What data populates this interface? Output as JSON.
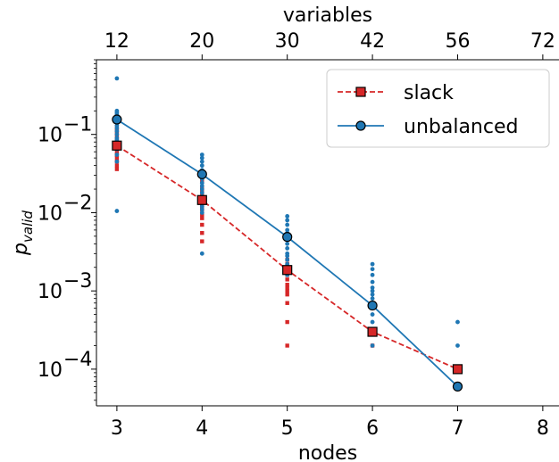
{
  "chart_data": {
    "type": "scatter",
    "xlabel": "nodes",
    "ylabel_base": "p",
    "ylabel_sub": "valid",
    "top_xlabel": "variables",
    "x_ticks": [
      3,
      4,
      5,
      6,
      7,
      8
    ],
    "x_tick_labels": [
      "3",
      "4",
      "5",
      "6",
      "7",
      "8"
    ],
    "top_ticks": [
      3,
      4,
      5,
      6,
      7,
      8
    ],
    "top_tick_labels": [
      "12",
      "20",
      "30",
      "42",
      "56",
      "72"
    ],
    "xlim": [
      2.76,
      8.19
    ],
    "ylim": [
      3.4e-05,
      0.9
    ],
    "y_scale": "log",
    "y_ticks": [
      0.0001,
      0.001,
      0.01,
      0.1
    ],
    "y_tick_base": "10",
    "y_tick_exponents": [
      "−4",
      "−3",
      "−2",
      "−1"
    ],
    "legend_position": "top-right",
    "series": [
      {
        "name": "slack",
        "style": "dashed",
        "marker": "square",
        "color": "#d62728",
        "x": [
          3,
          4,
          5,
          6,
          7
        ],
        "y": [
          0.072,
          0.0145,
          0.00185,
          0.0003,
          0.0001
        ],
        "scatter_points": [
          [
            3,
            0.036
          ],
          [
            3,
            0.04
          ],
          [
            3,
            0.045
          ],
          [
            3,
            0.05
          ],
          [
            3,
            0.055
          ],
          [
            3,
            0.06
          ],
          [
            3,
            0.065
          ],
          [
            3,
            0.07
          ],
          [
            3,
            0.08
          ],
          [
            3,
            0.09
          ],
          [
            3,
            0.1
          ],
          [
            3,
            0.11
          ],
          [
            3,
            0.12
          ],
          [
            4,
            0.0043
          ],
          [
            4,
            0.0055
          ],
          [
            4,
            0.007
          ],
          [
            4,
            0.0085
          ],
          [
            4,
            0.0095
          ],
          [
            4,
            0.011
          ],
          [
            4,
            0.012
          ],
          [
            4,
            0.013
          ],
          [
            4,
            0.015
          ],
          [
            4,
            0.017
          ],
          [
            4,
            0.019
          ],
          [
            4,
            0.021
          ],
          [
            4,
            0.025
          ],
          [
            5,
            0.0002
          ],
          [
            5,
            0.0004
          ],
          [
            5,
            0.0007
          ],
          [
            5,
            0.0009
          ],
          [
            5,
            0.001
          ],
          [
            5,
            0.0011
          ],
          [
            5,
            0.0012
          ],
          [
            5,
            0.0014
          ],
          [
            5,
            0.0016
          ],
          [
            5,
            0.0018
          ],
          [
            5,
            0.002
          ],
          [
            5,
            0.0022
          ],
          [
            5,
            0.0025
          ],
          [
            6,
            0.0002
          ],
          [
            6,
            0.0003
          ],
          [
            7,
            0.0001
          ]
        ]
      },
      {
        "name": "unbalanced",
        "style": "solid",
        "marker": "circle",
        "color": "#1f77b4",
        "x": [
          3,
          4,
          5,
          6,
          7
        ],
        "y": [
          0.155,
          0.031,
          0.0049,
          0.00065,
          6e-05
        ],
        "scatter_points": [
          [
            3,
            0.52
          ],
          [
            3,
            0.2
          ],
          [
            3,
            0.19
          ],
          [
            3,
            0.18
          ],
          [
            3,
            0.17
          ],
          [
            3,
            0.16
          ],
          [
            3,
            0.14
          ],
          [
            3,
            0.13
          ],
          [
            3,
            0.12
          ],
          [
            3,
            0.11
          ],
          [
            3,
            0.1
          ],
          [
            3,
            0.09
          ],
          [
            3,
            0.085
          ],
          [
            3,
            0.08
          ],
          [
            3,
            0.075
          ],
          [
            3,
            0.065
          ],
          [
            3,
            0.055
          ],
          [
            3,
            0.045
          ],
          [
            3,
            0.0105
          ],
          [
            4,
            0.055
          ],
          [
            4,
            0.05
          ],
          [
            4,
            0.045
          ],
          [
            4,
            0.04
          ],
          [
            4,
            0.035
          ],
          [
            4,
            0.03
          ],
          [
            4,
            0.027
          ],
          [
            4,
            0.024
          ],
          [
            4,
            0.022
          ],
          [
            4,
            0.02
          ],
          [
            4,
            0.018
          ],
          [
            4,
            0.016
          ],
          [
            4,
            0.014
          ],
          [
            4,
            0.012
          ],
          [
            4,
            0.011
          ],
          [
            4,
            0.01
          ],
          [
            4,
            0.003
          ],
          [
            5,
            0.009
          ],
          [
            5,
            0.008
          ],
          [
            5,
            0.007
          ],
          [
            5,
            0.006
          ],
          [
            5,
            0.0055
          ],
          [
            5,
            0.005
          ],
          [
            5,
            0.0045
          ],
          [
            5,
            0.004
          ],
          [
            5,
            0.0035
          ],
          [
            5,
            0.003
          ],
          [
            5,
            0.0028
          ],
          [
            5,
            0.0025
          ],
          [
            5,
            0.0022
          ],
          [
            5,
            0.002
          ],
          [
            5,
            0.0018
          ],
          [
            5,
            0.0016
          ],
          [
            6,
            0.0022
          ],
          [
            6,
            0.0019
          ],
          [
            6,
            0.0016
          ],
          [
            6,
            0.0013
          ],
          [
            6,
            0.0011
          ],
          [
            6,
            0.001
          ],
          [
            6,
            0.0009
          ],
          [
            6,
            0.0008
          ],
          [
            6,
            0.0007
          ],
          [
            6,
            0.0006
          ],
          [
            6,
            0.0005
          ],
          [
            6,
            0.0004
          ],
          [
            6,
            0.0003
          ],
          [
            6,
            0.0002
          ],
          [
            7,
            0.0004
          ],
          [
            7,
            0.0002
          ]
        ]
      }
    ]
  }
}
